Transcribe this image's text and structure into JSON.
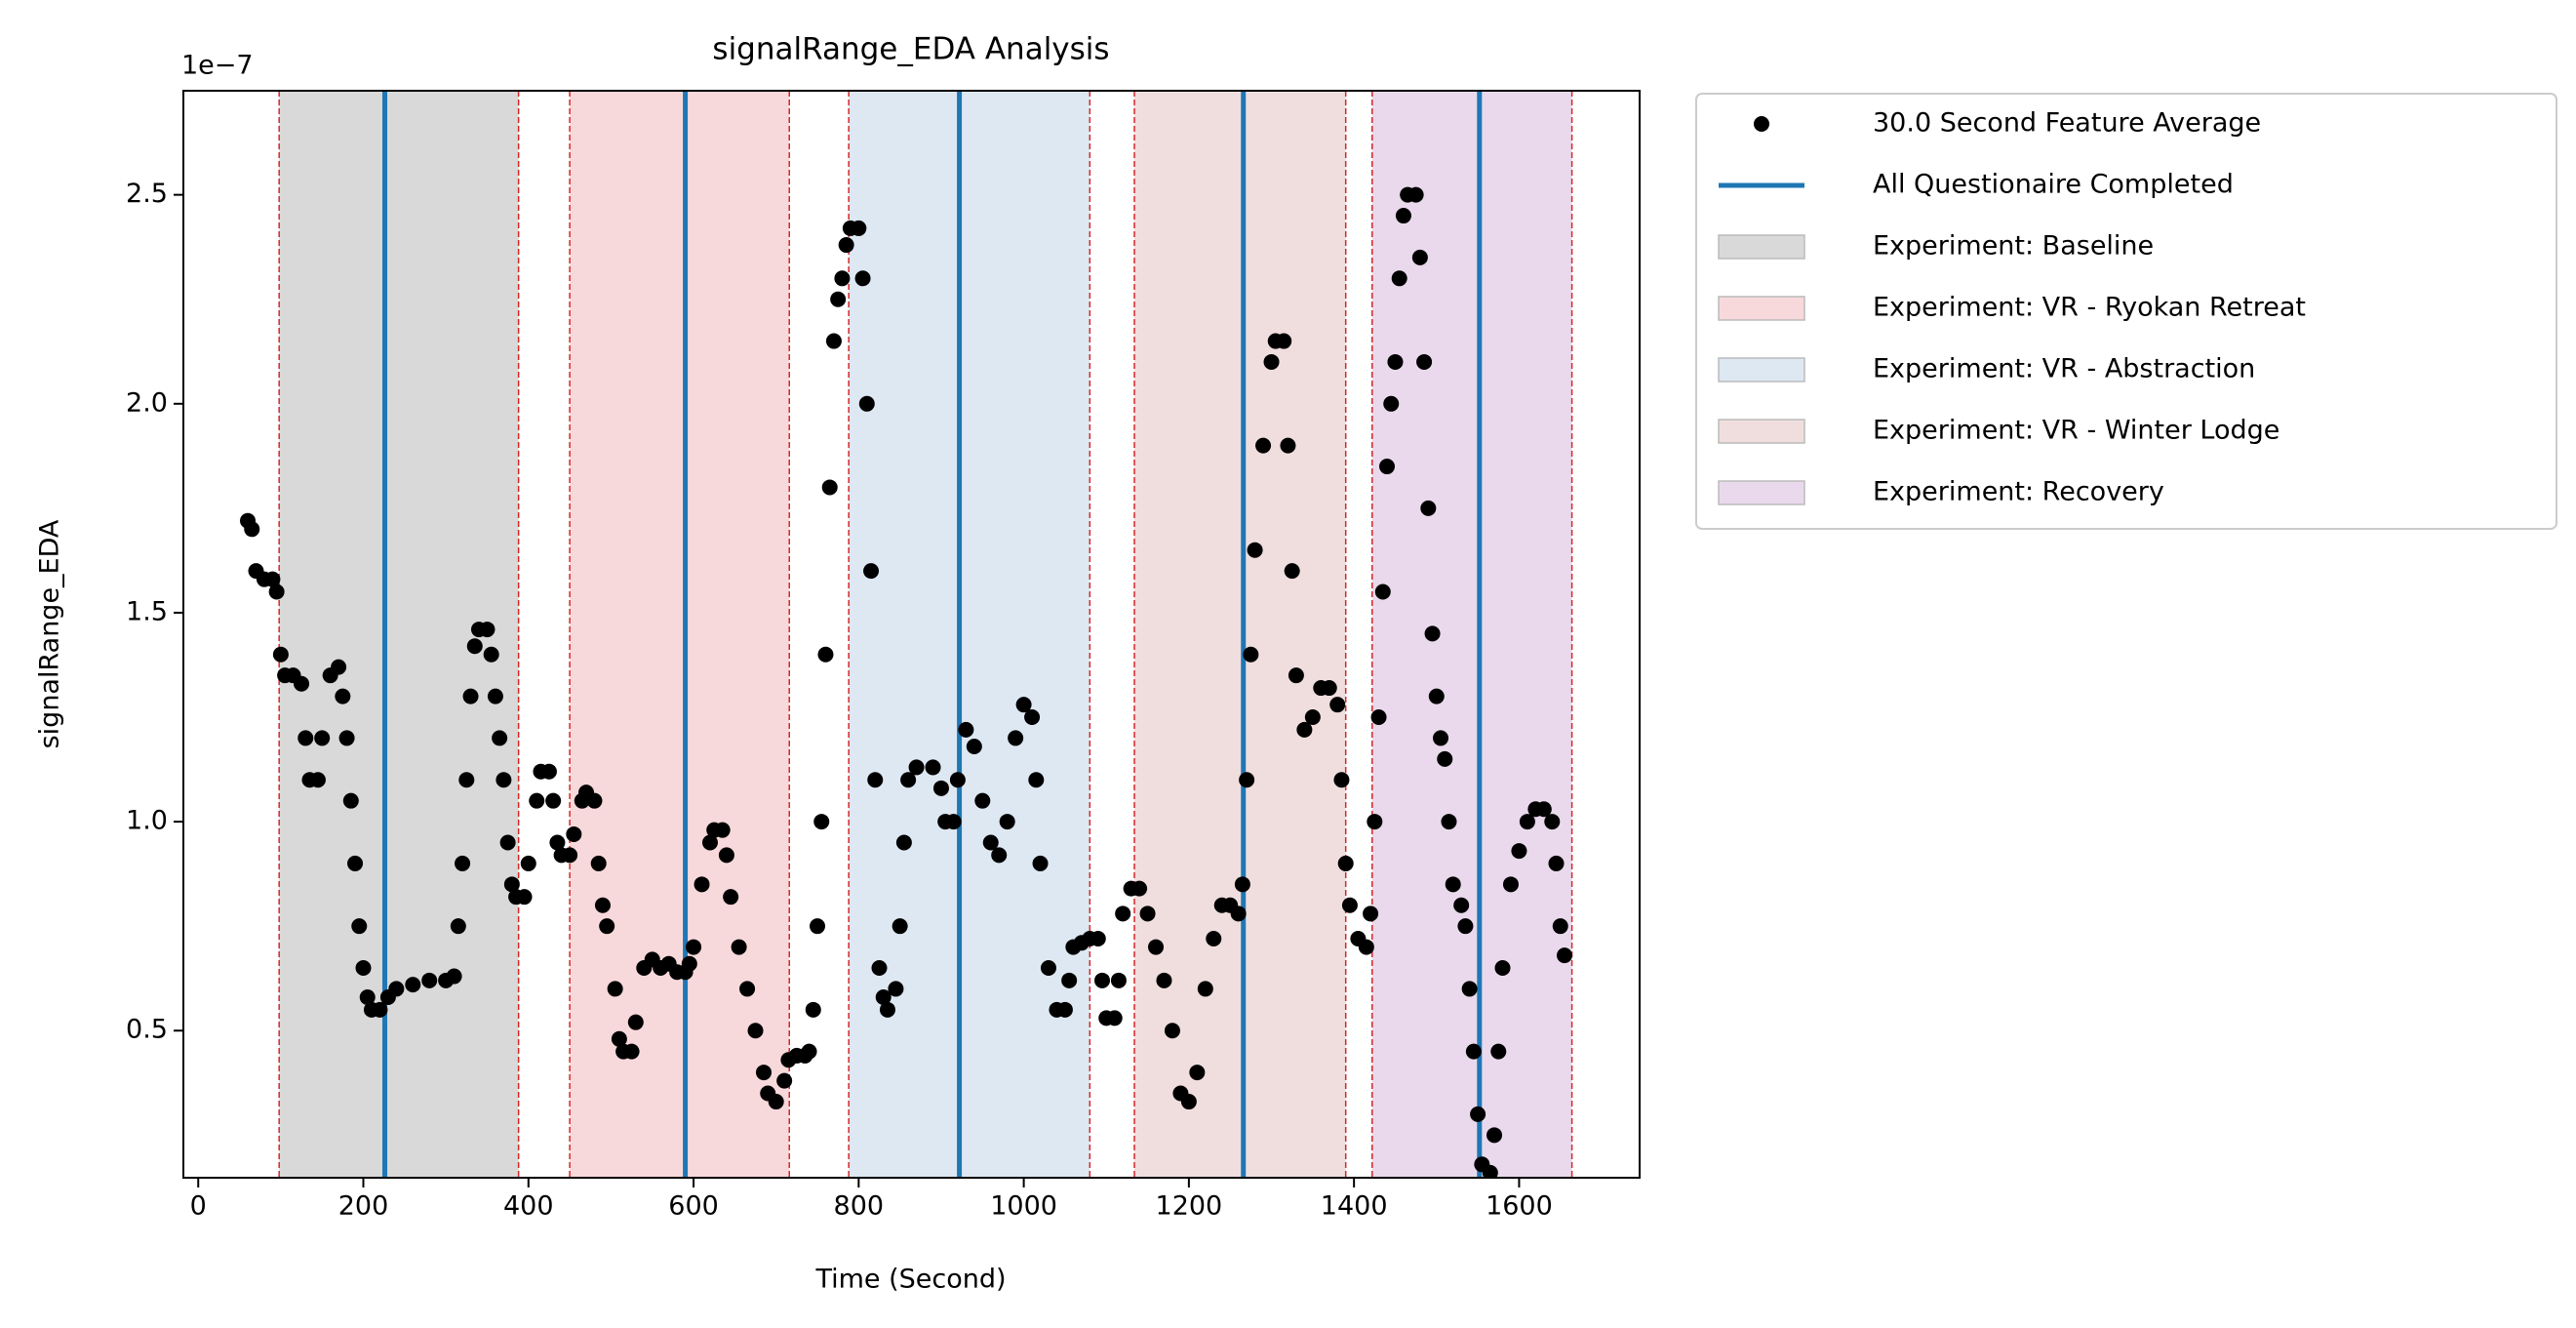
{
  "chart_data": {
    "type": "scatter",
    "title": "signalRange_EDA Analysis",
    "x_label": "Time (Second)",
    "y_label": "signalRange_EDA",
    "y_offset_label": "1e−7",
    "xlim": [
      -18,
      1746
    ],
    "ylim": [
      0.148,
      2.749
    ],
    "xticks": [
      0,
      200,
      400,
      600,
      800,
      1000,
      1200,
      1400,
      1600
    ],
    "yticks": [
      0.5,
      {
        "value": 1.0,
        "label": "1.0"
      },
      1.5,
      {
        "value": 2.0,
        "label": "2.0"
      },
      2.5
    ],
    "legend": "outside-upper-right",
    "series": [
      {
        "name": "30.0 Second Feature Average",
        "color": "#000000",
        "x": [
          60,
          65,
          70,
          80,
          90,
          95,
          100,
          105,
          115,
          125,
          130,
          135,
          145,
          150,
          160,
          170,
          175,
          180,
          185,
          190,
          195,
          200,
          205,
          210,
          220,
          230,
          240,
          260,
          280,
          300,
          310,
          315,
          320,
          325,
          330,
          335,
          340,
          350,
          355,
          360,
          365,
          370,
          375,
          380,
          385,
          395,
          400,
          410,
          415,
          425,
          430,
          435,
          440,
          450,
          455,
          465,
          470,
          480,
          485,
          490,
          495,
          505,
          510,
          515,
          525,
          530,
          540,
          550,
          560,
          570,
          580,
          590,
          595,
          600,
          610,
          620,
          625,
          635,
          640,
          645,
          655,
          665,
          675,
          685,
          690,
          700,
          710,
          715,
          725,
          735,
          740,
          745,
          750,
          755,
          760,
          765,
          770,
          775,
          780,
          785,
          790,
          800,
          805,
          810,
          815,
          820,
          825,
          830,
          835,
          845,
          850,
          855,
          860,
          870,
          890,
          900,
          905,
          915,
          920,
          930,
          940,
          950,
          960,
          970,
          980,
          990,
          1000,
          1010,
          1015,
          1020,
          1030,
          1040,
          1050,
          1055,
          1060,
          1070,
          1080,
          1090,
          1095,
          1100,
          1110,
          1115,
          1120,
          1130,
          1140,
          1150,
          1160,
          1170,
          1180,
          1190,
          1200,
          1210,
          1220,
          1230,
          1240,
          1250,
          1260,
          1265,
          1270,
          1275,
          1280,
          1290,
          1300,
          1305,
          1315,
          1320,
          1325,
          1330,
          1340,
          1350,
          1360,
          1370,
          1380,
          1385,
          1390,
          1395,
          1405,
          1415,
          1420,
          1425,
          1430,
          1435,
          1440,
          1445,
          1450,
          1455,
          1460,
          1465,
          1475,
          1480,
          1485,
          1490,
          1495,
          1500,
          1505,
          1510,
          1515,
          1520,
          1530,
          1535,
          1540,
          1545,
          1550,
          1555,
          1565,
          1570,
          1575,
          1580,
          1590,
          1600,
          1610,
          1620,
          1630,
          1640,
          1645,
          1650,
          1655
        ],
        "values": [
          1.72,
          1.7,
          1.6,
          1.58,
          1.58,
          1.55,
          1.4,
          1.35,
          1.35,
          1.33,
          1.2,
          1.1,
          1.1,
          1.2,
          1.35,
          1.37,
          1.3,
          1.2,
          1.05,
          0.9,
          0.75,
          0.65,
          0.58,
          0.55,
          0.55,
          0.58,
          0.6,
          0.61,
          0.62,
          0.62,
          0.63,
          0.75,
          0.9,
          1.1,
          1.3,
          1.42,
          1.46,
          1.46,
          1.4,
          1.3,
          1.2,
          1.1,
          0.95,
          0.85,
          0.82,
          0.82,
          0.9,
          1.05,
          1.12,
          1.12,
          1.05,
          0.95,
          0.92,
          0.92,
          0.97,
          1.05,
          1.07,
          1.05,
          0.9,
          0.8,
          0.75,
          0.6,
          0.48,
          0.45,
          0.45,
          0.52,
          0.65,
          0.67,
          0.65,
          0.66,
          0.64,
          0.64,
          0.66,
          0.7,
          0.85,
          0.95,
          0.98,
          0.98,
          0.92,
          0.82,
          0.7,
          0.6,
          0.5,
          0.4,
          0.35,
          0.33,
          0.38,
          0.43,
          0.44,
          0.44,
          0.45,
          0.55,
          0.75,
          1.0,
          1.4,
          1.8,
          2.15,
          2.25,
          2.3,
          2.38,
          2.42,
          2.42,
          2.3,
          2.0,
          1.6,
          1.1,
          0.65,
          0.58,
          0.55,
          0.6,
          0.75,
          0.95,
          1.1,
          1.13,
          1.13,
          1.08,
          1.0,
          1.0,
          1.1,
          1.22,
          1.18,
          1.05,
          0.95,
          0.92,
          1.0,
          1.2,
          1.28,
          1.25,
          1.1,
          0.9,
          0.65,
          0.55,
          0.55,
          0.62,
          0.7,
          0.71,
          0.72,
          0.72,
          0.62,
          0.53,
          0.53,
          0.62,
          0.78,
          0.84,
          0.84,
          0.78,
          0.7,
          0.62,
          0.5,
          0.35,
          0.33,
          0.4,
          0.6,
          0.72,
          0.8,
          0.8,
          0.78,
          0.85,
          1.1,
          1.4,
          1.65,
          1.9,
          2.1,
          2.15,
          2.15,
          1.9,
          1.6,
          1.35,
          1.22,
          1.25,
          1.32,
          1.32,
          1.28,
          1.1,
          0.9,
          0.8,
          0.72,
          0.7,
          0.78,
          1.0,
          1.25,
          1.55,
          1.85,
          2.0,
          2.1,
          2.3,
          2.45,
          2.5,
          2.5,
          2.35,
          2.1,
          1.75,
          1.45,
          1.3,
          1.2,
          1.15,
          1.0,
          0.85,
          0.8,
          0.75,
          0.6,
          0.45,
          0.3,
          0.18,
          0.16,
          0.25,
          0.45,
          0.65,
          0.85,
          0.93,
          1.0,
          1.03,
          1.03,
          1.0,
          0.9,
          0.75,
          0.68
        ]
      }
    ],
    "vlines": {
      "name": "All Questionaire Completed",
      "color": "#1f77b4",
      "x": [
        226,
        590,
        922,
        1266,
        1552
      ]
    },
    "edge_color": "#d62728",
    "spans": [
      {
        "name": "Experiment: Baseline",
        "color": "#d9d9d9",
        "start": 98,
        "end": 388
      },
      {
        "name": "Experiment: VR - Ryokan Retreat",
        "color": "#f8d9db",
        "start": 450,
        "end": 716
      },
      {
        "name": "Experiment: VR - Abstraction",
        "color": "#dde8f3",
        "start": 788,
        "end": 1080
      },
      {
        "name": "Experiment: VR - Winter Lodge",
        "color": "#f0dede",
        "start": 1134,
        "end": 1390
      },
      {
        "name": "Experiment: Recovery",
        "color": "#ead9ec",
        "start": 1422,
        "end": 1664
      }
    ]
  }
}
